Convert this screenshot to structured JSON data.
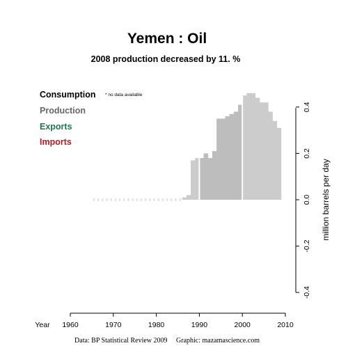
{
  "chart_data": {
    "type": "bar",
    "title": "Yemen :  Oil",
    "subtitle": "2008 production decreased by 11. %",
    "legend": [
      {
        "label": "Consumption",
        "color": "#000000"
      },
      {
        "label": "Production",
        "color": "#666666"
      },
      {
        "label": "Exports",
        "color": "#1b7a4a"
      },
      {
        "label": "Imports",
        "color": "#c0181e"
      }
    ],
    "legend_note": "* no data available",
    "ylabel": "million barrels per day",
    "xlabel": "Year",
    "xlim": [
      1960,
      2010
    ],
    "ylim": [
      -0.42,
      0.44
    ],
    "x_ticks": [
      "1960",
      "1970",
      "1980",
      "1990",
      "2000",
      "2010"
    ],
    "y_ticks": [
      "0.4",
      "0.2",
      "0.0",
      "-0.2",
      "-0.4"
    ],
    "y_tick_values": [
      0.4,
      0.2,
      0.0,
      -0.2,
      -0.4
    ],
    "production": {
      "years": [
        1986,
        1987,
        1988,
        1989,
        1990,
        1991,
        1992,
        1993,
        1994,
        1995,
        1996,
        1997,
        1998,
        1999,
        2000,
        2001,
        2002,
        2003,
        2004,
        2005,
        2006,
        2007,
        2008
      ],
      "values": [
        0.01,
        0.02,
        0.17,
        0.18,
        0.18,
        0.2,
        0.18,
        0.21,
        0.35,
        0.35,
        0.36,
        0.37,
        0.38,
        0.41,
        0.45,
        0.46,
        0.46,
        0.44,
        0.42,
        0.42,
        0.38,
        0.34,
        0.31
      ],
      "color": "#cccccc",
      "mid_color": "#bdbdbd"
    },
    "no_data_years": [
      1965,
      1966,
      1967,
      1968,
      1969,
      1970,
      1971,
      1972,
      1973,
      1974,
      1975,
      1976,
      1977,
      1978,
      1979,
      1980,
      1981,
      1982,
      1983,
      1984,
      1985
    ]
  },
  "footer": {
    "credit": "Data: BP Statistical Review 2009     Graphic: mazamascience.com"
  }
}
